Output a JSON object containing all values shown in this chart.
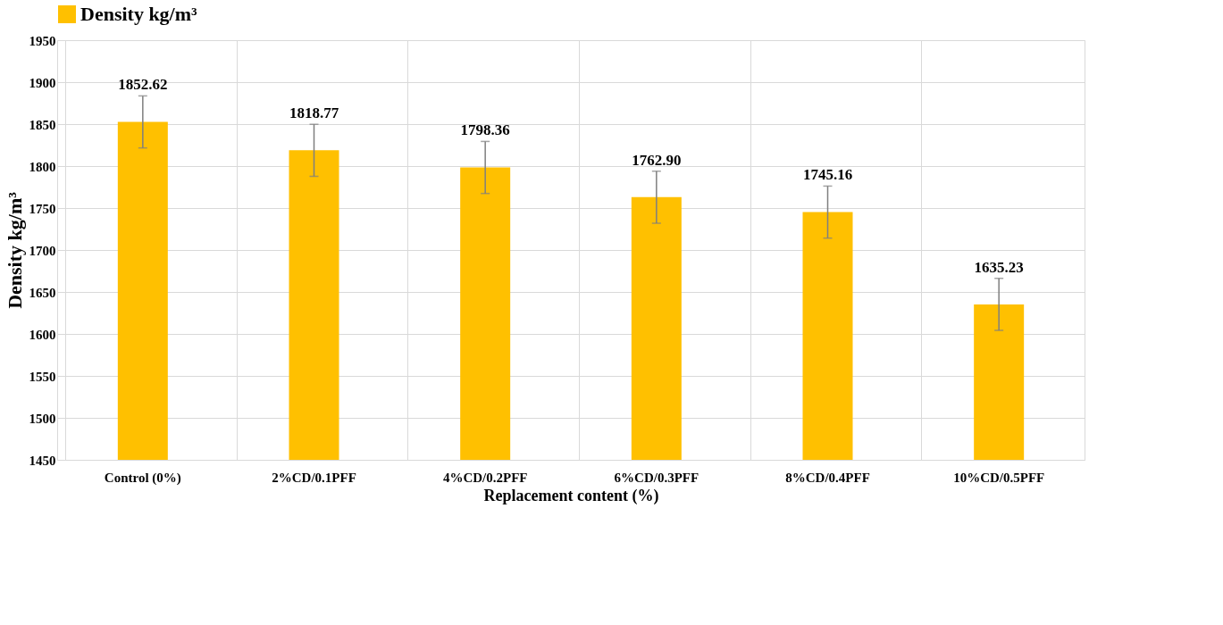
{
  "chart_data": {
    "type": "bar",
    "xlabel": "Replacement content (%)",
    "ylabel": "Density kg/m³",
    "categories": [
      "Control  (0%)",
      "2%CD/0.1PFF",
      "4%CD/0.2PFF",
      "6%CD/0.3PFF",
      "8%CD/0.4PFF",
      "10%CD/0.5PFF"
    ],
    "series": [
      {
        "name": "Density kg/m³",
        "color": "#ffc000",
        "values": [
          1852.62,
          1818.77,
          1798.36,
          1762.9,
          1745.16,
          1635.23
        ],
        "errors": [
          31,
          31,
          31,
          31,
          31,
          31
        ],
        "value_labels": [
          "1852.62",
          "1818.77",
          "1798.36",
          "1762.90",
          "1745.16",
          "1635.23"
        ]
      }
    ],
    "ylim": [
      1450,
      1950
    ],
    "yticks": [
      1450,
      1500,
      1550,
      1600,
      1650,
      1700,
      1750,
      1800,
      1850,
      1900,
      1950
    ],
    "grid": true,
    "legend": "top",
    "data_labels": true
  }
}
